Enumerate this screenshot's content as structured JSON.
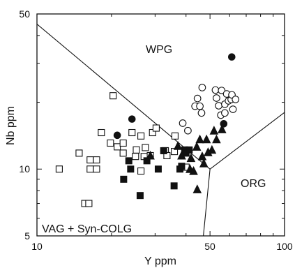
{
  "chart_data": {
    "type": "scatter",
    "title": "",
    "xlabel": "Y ppm",
    "ylabel": "Nb ppm",
    "x_scale": "log",
    "y_scale": "log",
    "xlim": [
      10,
      100
    ],
    "ylim": [
      5,
      50
    ],
    "x_ticks": [
      "10",
      "50",
      "100"
    ],
    "y_ticks": [
      "5",
      "10",
      "50"
    ],
    "grid": false,
    "field_labels": [
      "WPG",
      "ORG",
      "VAG + Syn-COLG"
    ],
    "boundaries": [
      [
        [
          10,
          45
        ],
        [
          50,
          10
        ]
      ],
      [
        [
          50,
          10
        ],
        [
          100,
          18
        ]
      ],
      [
        [
          50,
          10
        ],
        [
          47,
          5
        ]
      ]
    ],
    "series": [
      {
        "marker": "open-square",
        "points": [
          [
            12.3,
            10
          ],
          [
            14.8,
            11.8
          ],
          [
            15.6,
            7
          ],
          [
            16.2,
            7
          ],
          [
            16.4,
            11
          ],
          [
            16.4,
            10
          ],
          [
            17.4,
            11
          ],
          [
            17.4,
            10
          ],
          [
            18.2,
            14.6
          ],
          [
            19.8,
            13.1
          ],
          [
            20.3,
            21.4
          ],
          [
            21.1,
            12.6
          ],
          [
            22.3,
            13.1
          ],
          [
            22.3,
            11.8
          ],
          [
            24.2,
            14.6
          ],
          [
            25,
            11.4
          ],
          [
            25.2,
            12.2
          ],
          [
            26.3,
            14.1
          ],
          [
            26.3,
            9.8
          ],
          [
            27.1,
            11.4
          ],
          [
            27.4,
            12.5
          ],
          [
            28.7,
            11.5
          ],
          [
            29.3,
            14.6
          ],
          [
            30.3,
            15.3
          ],
          [
            33,
            12.1
          ],
          [
            33.5,
            11.5
          ],
          [
            35.9,
            12
          ],
          [
            36.1,
            14.1
          ],
          [
            40,
            10.2
          ]
        ]
      },
      {
        "marker": "filled-square",
        "points": [
          [
            22.4,
            9
          ],
          [
            23.5,
            10.9
          ],
          [
            23.9,
            10
          ],
          [
            26.1,
            7.6
          ],
          [
            27.8,
            10.9
          ],
          [
            30.9,
            10
          ],
          [
            32.5,
            12.1
          ],
          [
            35.8,
            8.4
          ],
          [
            37.8,
            10
          ],
          [
            39.5,
            12.2
          ],
          [
            40,
            11.8
          ],
          [
            41.2,
            12.2
          ],
          [
            38.4,
            10.3
          ]
        ]
      },
      {
        "marker": "open-circle",
        "points": [
          [
            38.8,
            16.1
          ],
          [
            40.7,
            14.9
          ],
          [
            43.5,
            19.2
          ],
          [
            44.5,
            20.8
          ],
          [
            45.5,
            19.2
          ],
          [
            46.2,
            17.9
          ],
          [
            46.5,
            23.3
          ],
          [
            52.6,
            22.7
          ],
          [
            53.1,
            20.9
          ],
          [
            54.2,
            19.3
          ],
          [
            55.3,
            17.5
          ],
          [
            55.7,
            22.6
          ],
          [
            57.4,
            17.9
          ],
          [
            57.4,
            19.6
          ],
          [
            58.4,
            21.8
          ],
          [
            59.4,
            20.3
          ],
          [
            60.9,
            20.6
          ],
          [
            61.3,
            21.6
          ],
          [
            61.9,
            18.6
          ],
          [
            63.4,
            20.6
          ]
        ]
      },
      {
        "marker": "filled-circle",
        "points": [
          [
            21.1,
            14.2
          ],
          [
            24.2,
            16.8
          ],
          [
            56.8,
            16
          ],
          [
            61.2,
            32
          ]
        ]
      },
      {
        "marker": "filled-triangle",
        "points": [
          [
            28.7,
            11.5
          ],
          [
            37.1,
            12.7
          ],
          [
            38.4,
            11.5
          ],
          [
            41.5,
            10
          ],
          [
            41.9,
            11.2
          ],
          [
            42.9,
            9.8
          ],
          [
            44.2,
            12.6
          ],
          [
            44.4,
            8.1
          ],
          [
            45.5,
            13.6
          ],
          [
            46.5,
            11.4
          ],
          [
            47.2,
            10.6
          ],
          [
            48.4,
            13.6
          ],
          [
            49.1,
            11.9
          ],
          [
            50.9,
            12.2
          ],
          [
            51.9,
            14.9
          ],
          [
            53.1,
            13.6
          ],
          [
            55.9,
            15.1
          ]
        ]
      }
    ]
  }
}
